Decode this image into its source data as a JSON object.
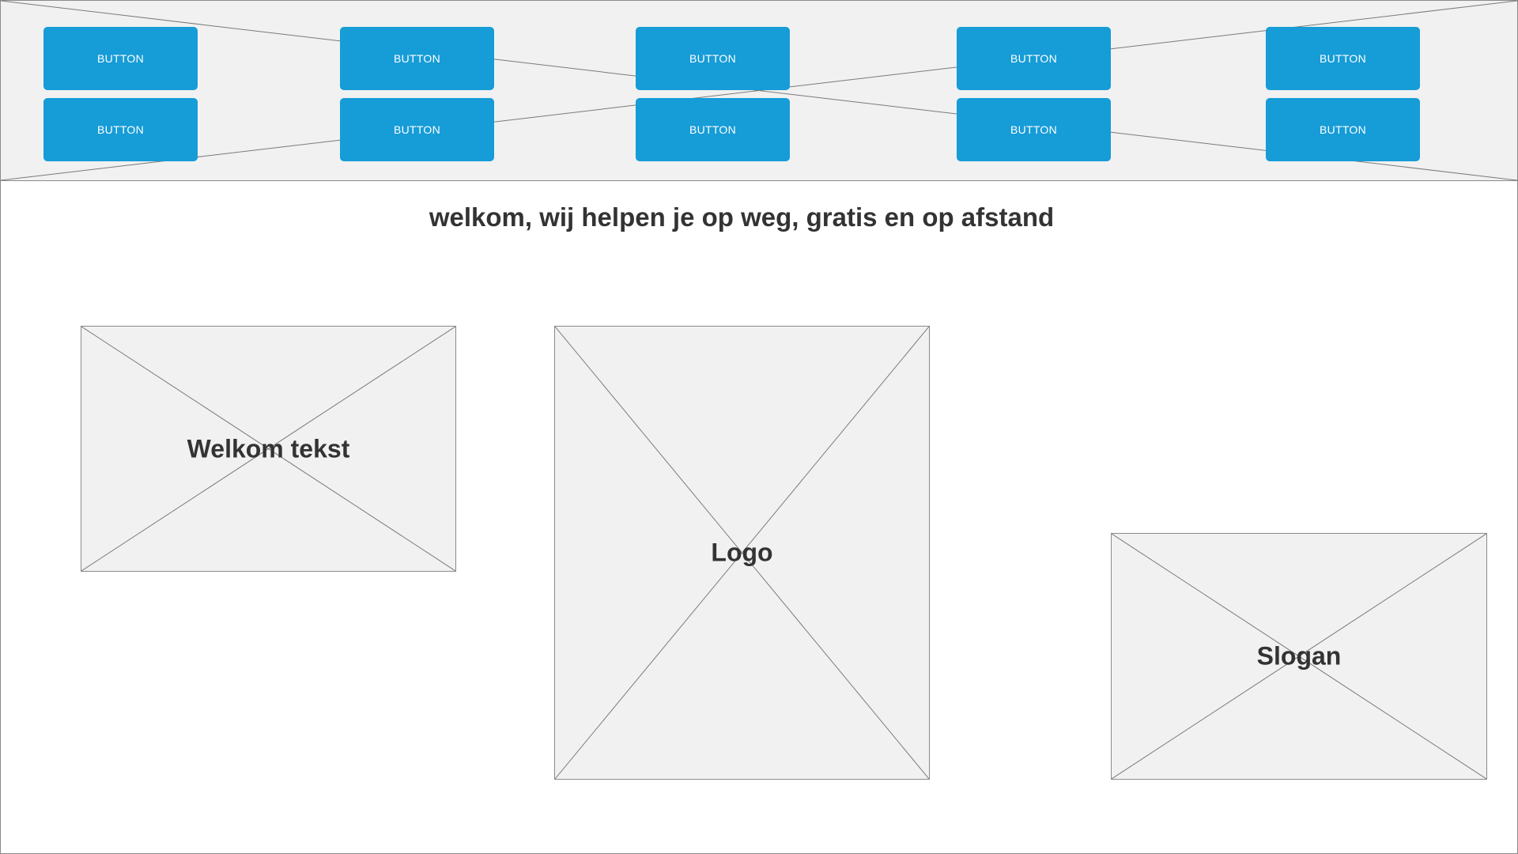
{
  "header": {
    "buttons": [
      {
        "label": "BUTTON"
      },
      {
        "label": "BUTTON"
      },
      {
        "label": "BUTTON"
      },
      {
        "label": "BUTTON"
      },
      {
        "label": "BUTTON"
      },
      {
        "label": "BUTTON"
      },
      {
        "label": "BUTTON"
      },
      {
        "label": "BUTTON"
      },
      {
        "label": "BUTTON"
      },
      {
        "label": "BUTTON"
      }
    ]
  },
  "main": {
    "heading": "welkom, wij helpen je op weg, gratis en op afstand",
    "welkom_label": "Welkom tekst",
    "logo_label": "Logo",
    "slogan_label": "Slogan"
  },
  "colors": {
    "button": "#169cd7",
    "placeholder_bg": "#f1f1f1",
    "placeholder_border": "#8a8a8a",
    "text": "#333333"
  }
}
